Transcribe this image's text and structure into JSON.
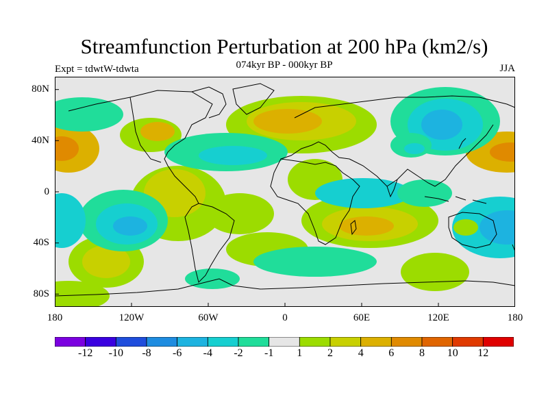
{
  "title": "Streamfunction Perturbation at 200 hPa (km2/s)",
  "subtitle": "074kyr BP - 000kyr BP",
  "experiment": "Expt = tdwtW-tdwta",
  "season": "JJA",
  "map": {
    "type": "global filled contour map",
    "projection": "cylindrical equidistant",
    "lon_range": [
      -180,
      180
    ],
    "lat_range": [
      -90,
      90
    ],
    "lat_ticks": [
      "80N",
      "40N",
      "0",
      "40S",
      "80S"
    ],
    "lon_ticks": [
      "180",
      "120W",
      "60W",
      "0",
      "60E",
      "120E",
      "180"
    ]
  },
  "colorbar": {
    "colors": [
      "#7b00e0",
      "#3a00e0",
      "#1f4ddc",
      "#1e8ce0",
      "#1db3e0",
      "#16cfd0",
      "#20dd9a",
      "#e6e6e6",
      "#9cdc00",
      "#c8d000",
      "#dcb000",
      "#e08a00",
      "#e06500",
      "#e03a00",
      "#e00000"
    ],
    "labels": [
      "-12",
      "-10",
      "-8",
      "-6",
      "-4",
      "-2",
      "-1",
      "1",
      "2",
      "4",
      "6",
      "8",
      "10",
      "12"
    ]
  }
}
